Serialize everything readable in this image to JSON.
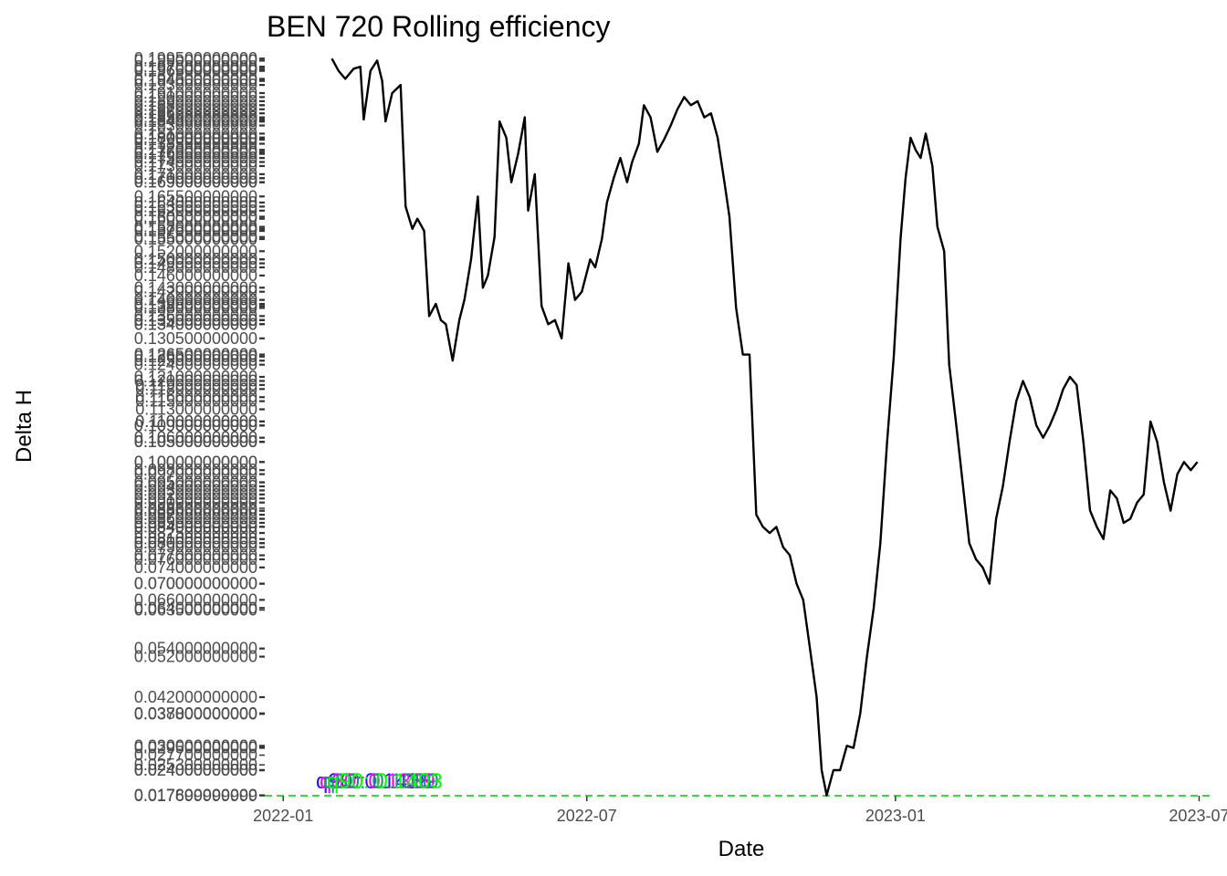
{
  "chart_data": {
    "type": "line",
    "title": "BEN 720 Rolling efficiency",
    "xlabel": "Date",
    "ylabel": "Delta H",
    "x_tick_labels": [
      "2022-01",
      "2022-07",
      "2023-01",
      "2023-07"
    ],
    "x_tick_dates": [
      "2022-01-01",
      "2022-07-01",
      "2023-01-01",
      "2023-07-01"
    ],
    "xlim": [
      "2021-12-21",
      "2023-07-10"
    ],
    "ylim": [
      0.0177,
      0.2
    ],
    "y_tick_labels_visible": [
      "0.088600000000",
      "0.063500000000",
      "0.037800000000",
      "0.027700000000",
      "0.025300000000",
      "0.017699999999"
    ],
    "y_tick_values_visible": [
      0.0886,
      0.0635,
      0.0378,
      0.0277,
      0.0253,
      0.0177
    ],
    "y_axis_note": "many overlapping tick labels (one per data value) crowd the y axis",
    "series": [
      {
        "color": "#000000",
        "points": [
          {
            "x": "2022-01-30",
            "y": 0.1995
          },
          {
            "x": "2022-02-03",
            "y": 0.1965
          },
          {
            "x": "2022-02-07",
            "y": 0.1945
          },
          {
            "x": "2022-02-12",
            "y": 0.197
          },
          {
            "x": "2022-02-16",
            "y": 0.1975
          },
          {
            "x": "2022-02-18",
            "y": 0.1845
          },
          {
            "x": "2022-02-22",
            "y": 0.1965
          },
          {
            "x": "2022-02-26",
            "y": 0.199
          },
          {
            "x": "2022-03-01",
            "y": 0.194
          },
          {
            "x": "2022-03-03",
            "y": 0.184
          },
          {
            "x": "2022-03-07",
            "y": 0.191
          },
          {
            "x": "2022-03-12",
            "y": 0.193
          },
          {
            "x": "2022-03-15",
            "y": 0.163
          },
          {
            "x": "2022-03-19",
            "y": 0.1575
          },
          {
            "x": "2022-03-22",
            "y": 0.16
          },
          {
            "x": "2022-03-26",
            "y": 0.157
          },
          {
            "x": "2022-03-29",
            "y": 0.136
          },
          {
            "x": "2022-04-02",
            "y": 0.139
          },
          {
            "x": "2022-04-05",
            "y": 0.135
          },
          {
            "x": "2022-04-08",
            "y": 0.134
          },
          {
            "x": "2022-04-12",
            "y": 0.125
          },
          {
            "x": "2022-04-16",
            "y": 0.135
          },
          {
            "x": "2022-04-19",
            "y": 0.14
          },
          {
            "x": "2022-04-23",
            "y": 0.15
          },
          {
            "x": "2022-04-27",
            "y": 0.1655
          },
          {
            "x": "2022-04-30",
            "y": 0.143
          },
          {
            "x": "2022-05-03",
            "y": 0.146
          },
          {
            "x": "2022-05-07",
            "y": 0.1555
          },
          {
            "x": "2022-05-10",
            "y": 0.184
          },
          {
            "x": "2022-05-14",
            "y": 0.18
          },
          {
            "x": "2022-05-17",
            "y": 0.169
          },
          {
            "x": "2022-05-21",
            "y": 0.176
          },
          {
            "x": "2022-05-25",
            "y": 0.185
          },
          {
            "x": "2022-05-27",
            "y": 0.162
          },
          {
            "x": "2022-05-31",
            "y": 0.171
          },
          {
            "x": "2022-06-04",
            "y": 0.1385
          },
          {
            "x": "2022-06-08",
            "y": 0.134
          },
          {
            "x": "2022-06-12",
            "y": 0.135
          },
          {
            "x": "2022-06-16",
            "y": 0.1305
          },
          {
            "x": "2022-06-20",
            "y": 0.149
          },
          {
            "x": "2022-06-24",
            "y": 0.14
          },
          {
            "x": "2022-06-28",
            "y": 0.142
          },
          {
            "x": "2022-07-03",
            "y": 0.15
          },
          {
            "x": "2022-07-06",
            "y": 0.148
          },
          {
            "x": "2022-07-10",
            "y": 0.155
          },
          {
            "x": "2022-07-13",
            "y": 0.164
          },
          {
            "x": "2022-07-17",
            "y": 0.17
          },
          {
            "x": "2022-07-21",
            "y": 0.175
          },
          {
            "x": "2022-07-25",
            "y": 0.169
          },
          {
            "x": "2022-07-28",
            "y": 0.174
          },
          {
            "x": "2022-08-01",
            "y": 0.1785
          },
          {
            "x": "2022-08-04",
            "y": 0.188
          },
          {
            "x": "2022-08-08",
            "y": 0.185
          },
          {
            "x": "2022-08-12",
            "y": 0.1765
          },
          {
            "x": "2022-08-16",
            "y": 0.1795
          },
          {
            "x": "2022-08-20",
            "y": 0.183
          },
          {
            "x": "2022-08-24",
            "y": 0.187
          },
          {
            "x": "2022-08-28",
            "y": 0.19
          },
          {
            "x": "2022-09-01",
            "y": 0.188
          },
          {
            "x": "2022-09-05",
            "y": 0.189
          },
          {
            "x": "2022-09-09",
            "y": 0.185
          },
          {
            "x": "2022-09-13",
            "y": 0.186
          },
          {
            "x": "2022-09-17",
            "y": 0.18
          },
          {
            "x": "2022-09-21",
            "y": 0.169
          },
          {
            "x": "2022-09-24",
            "y": 0.1605
          },
          {
            "x": "2022-09-28",
            "y": 0.138
          },
          {
            "x": "2022-10-02",
            "y": 0.1265
          },
          {
            "x": "2022-10-06",
            "y": 0.1265
          },
          {
            "x": "2022-10-10",
            "y": 0.087
          },
          {
            "x": "2022-10-14",
            "y": 0.084
          },
          {
            "x": "2022-10-18",
            "y": 0.0825
          },
          {
            "x": "2022-10-22",
            "y": 0.084
          },
          {
            "x": "2022-10-26",
            "y": 0.079
          },
          {
            "x": "2022-10-30",
            "y": 0.077
          },
          {
            "x": "2022-11-03",
            "y": 0.07
          },
          {
            "x": "2022-11-07",
            "y": 0.066
          },
          {
            "x": "2022-11-11",
            "y": 0.054
          },
          {
            "x": "2022-11-15",
            "y": 0.042
          },
          {
            "x": "2022-11-18",
            "y": 0.024
          },
          {
            "x": "2022-11-21",
            "y": 0.0178
          },
          {
            "x": "2022-11-25",
            "y": 0.024
          },
          {
            "x": "2022-11-29",
            "y": 0.024
          },
          {
            "x": "2022-12-03",
            "y": 0.03
          },
          {
            "x": "2022-12-07",
            "y": 0.0295
          },
          {
            "x": "2022-12-11",
            "y": 0.038
          },
          {
            "x": "2022-12-15",
            "y": 0.052
          },
          {
            "x": "2022-12-19",
            "y": 0.064
          },
          {
            "x": "2022-12-23",
            "y": 0.08
          },
          {
            "x": "2022-12-27",
            "y": 0.105
          },
          {
            "x": "2022-12-31",
            "y": 0.126
          },
          {
            "x": "2023-01-04",
            "y": 0.155
          },
          {
            "x": "2023-01-07",
            "y": 0.17
          },
          {
            "x": "2023-01-10",
            "y": 0.18
          },
          {
            "x": "2023-01-13",
            "y": 0.177
          },
          {
            "x": "2023-01-16",
            "y": 0.175
          },
          {
            "x": "2023-01-19",
            "y": 0.181
          },
          {
            "x": "2023-01-23",
            "y": 0.173
          },
          {
            "x": "2023-01-26",
            "y": 0.158
          },
          {
            "x": "2023-01-30",
            "y": 0.152
          },
          {
            "x": "2023-02-02",
            "y": 0.124
          },
          {
            "x": "2023-02-06",
            "y": 0.11
          },
          {
            "x": "2023-02-10",
            "y": 0.095
          },
          {
            "x": "2023-02-14",
            "y": 0.08
          },
          {
            "x": "2023-02-18",
            "y": 0.076
          },
          {
            "x": "2023-02-22",
            "y": 0.074
          },
          {
            "x": "2023-02-26",
            "y": 0.07
          },
          {
            "x": "2023-03-02",
            "y": 0.086
          },
          {
            "x": "2023-03-06",
            "y": 0.094
          },
          {
            "x": "2023-03-10",
            "y": 0.105
          },
          {
            "x": "2023-03-14",
            "y": 0.115
          },
          {
            "x": "2023-03-18",
            "y": 0.12
          },
          {
            "x": "2023-03-22",
            "y": 0.116
          },
          {
            "x": "2023-03-26",
            "y": 0.109
          },
          {
            "x": "2023-03-30",
            "y": 0.106
          },
          {
            "x": "2023-04-03",
            "y": 0.109
          },
          {
            "x": "2023-04-07",
            "y": 0.113
          },
          {
            "x": "2023-04-11",
            "y": 0.118
          },
          {
            "x": "2023-04-15",
            "y": 0.121
          },
          {
            "x": "2023-04-19",
            "y": 0.119
          },
          {
            "x": "2023-04-23",
            "y": 0.105
          },
          {
            "x": "2023-04-27",
            "y": 0.088
          },
          {
            "x": "2023-05-01",
            "y": 0.084
          },
          {
            "x": "2023-05-05",
            "y": 0.081
          },
          {
            "x": "2023-05-09",
            "y": 0.093
          },
          {
            "x": "2023-05-13",
            "y": 0.091
          },
          {
            "x": "2023-05-17",
            "y": 0.085
          },
          {
            "x": "2023-05-21",
            "y": 0.086
          },
          {
            "x": "2023-05-25",
            "y": 0.09
          },
          {
            "x": "2023-05-29",
            "y": 0.092
          },
          {
            "x": "2023-06-02",
            "y": 0.11
          },
          {
            "x": "2023-06-06",
            "y": 0.105
          },
          {
            "x": "2023-06-10",
            "y": 0.095
          },
          {
            "x": "2023-06-14",
            "y": 0.088
          },
          {
            "x": "2023-06-18",
            "y": 0.097
          },
          {
            "x": "2023-06-22",
            "y": 0.1
          },
          {
            "x": "2023-06-26",
            "y": 0.098
          },
          {
            "x": "2023-06-30",
            "y": 0.1
          }
        ]
      }
    ],
    "reference_line": {
      "y": 0.0177,
      "color": "#00c800",
      "dash": "dashed"
    },
    "annotations": [
      {
        "text": "q90: 0.1428",
        "color": "#1a1aff"
      },
      {
        "text": "q90: 0.1339",
        "color": "#ff00ff"
      },
      {
        "text": "q50: 0.1089",
        "color": "#2a8a8a"
      },
      {
        "text": "q90: 0.1403",
        "color": "#00ff00"
      }
    ],
    "grid": false
  }
}
